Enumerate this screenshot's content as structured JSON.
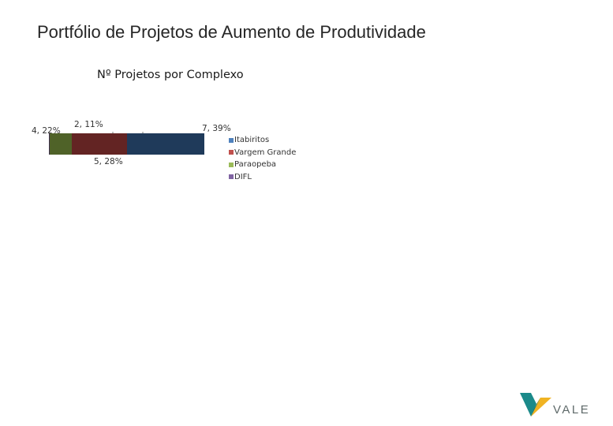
{
  "page": {
    "title": "Portfólio de Projetos de Aumento de Produtividade",
    "logo_text": "VALE"
  },
  "chart_data": {
    "type": "bar",
    "title": "Nº Projetos por Complexo",
    "orientation": "horizontal-stacked",
    "series": [
      {
        "name": "Itabiritos",
        "value": 7,
        "percent": 39,
        "label": "7, 39%",
        "color": "#1f3a5a"
      },
      {
        "name": "Vargem Grande",
        "value": 5,
        "percent": 28,
        "label": "5, 28%",
        "color": "#632423"
      },
      {
        "name": "Paraopeba",
        "value": 2,
        "percent": 11,
        "label": "2, 11%",
        "color": "#4f6228"
      },
      {
        "name": "DIFL",
        "value": 4,
        "percent": 22,
        "label": "4, 22%",
        "color": "#403152"
      }
    ],
    "legend_position": "right",
    "legend_swatch_colors": [
      "#4f81bd",
      "#c0504d",
      "#9bbb59",
      "#8064a2"
    ]
  }
}
